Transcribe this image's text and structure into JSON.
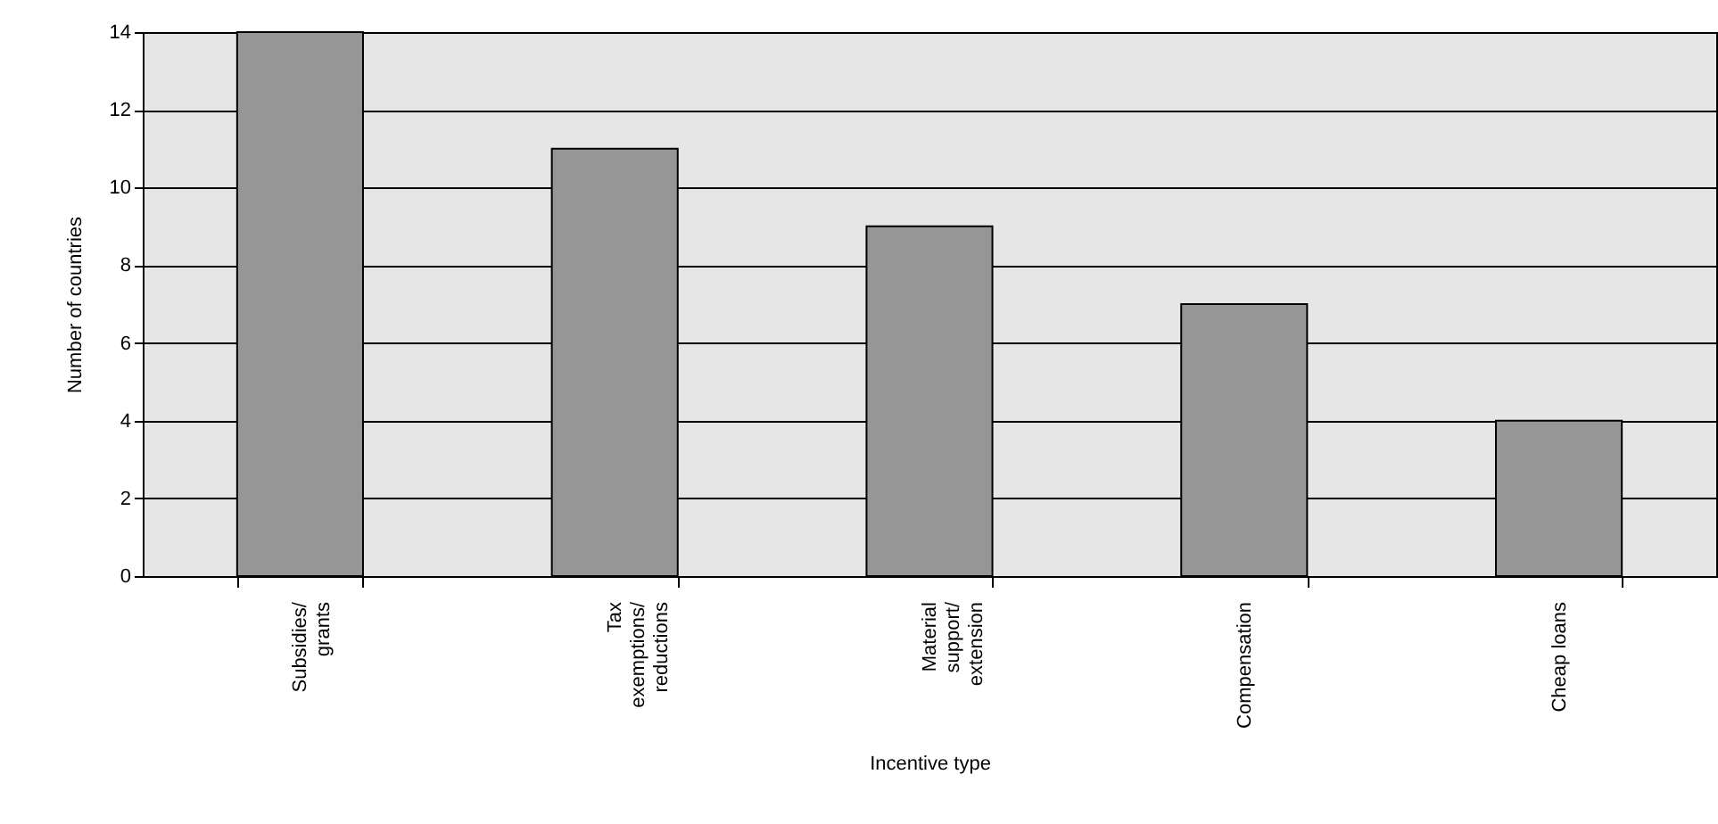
{
  "chart_data": {
    "type": "bar",
    "xlabel": "Incentive type",
    "ylabel": "Number of countries",
    "categories": [
      "Subsidies/\ngrants",
      "Tax\nexemptions/\nreductions",
      "Material\nsupport/\nextension",
      "Compensation",
      "Cheap loans"
    ],
    "values": [
      14,
      11,
      9,
      7,
      4
    ],
    "color": "#969696",
    "ylim": [
      0,
      14
    ],
    "yticks": [
      0,
      2,
      4,
      6,
      8,
      10,
      12,
      14
    ],
    "grid": "y"
  }
}
